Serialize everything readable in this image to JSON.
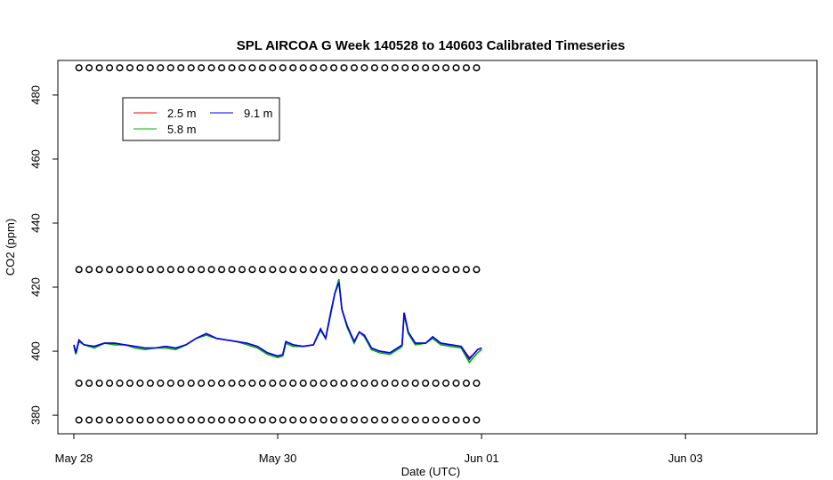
{
  "chart_data": {
    "type": "line",
    "title": "SPL AIRCOA G  Week 140528 to 140603  Calibrated Timeseries",
    "x_label": "Date (UTC)",
    "y_label": "CO2 (ppm)",
    "xlim": [
      -0.157,
      7.29
    ],
    "ylim": [
      374.2,
      490.8
    ],
    "xticks": [
      {
        "value": 0,
        "label": "May 28"
      },
      {
        "value": 2,
        "label": "May 30"
      },
      {
        "value": 4,
        "label": "Jun 01"
      },
      {
        "value": 6,
        "label": "Jun 03"
      }
    ],
    "yticks": [
      380,
      400,
      420,
      440,
      460,
      480
    ],
    "x": [
      0,
      0.02,
      0.05,
      0.1,
      0.2,
      0.3,
      0.4,
      0.5,
      0.6,
      0.7,
      0.8,
      0.9,
      1.0,
      1.1,
      1.2,
      1.3,
      1.4,
      1.5,
      1.6,
      1.7,
      1.8,
      1.9,
      2.0,
      2.05,
      2.08,
      2.15,
      2.25,
      2.35,
      2.42,
      2.47,
      2.52,
      2.56,
      2.6,
      2.63,
      2.68,
      2.75,
      2.8,
      2.85,
      2.92,
      3.0,
      3.1,
      3.2,
      3.22,
      3.24,
      3.28,
      3.35,
      3.45,
      3.52,
      3.6,
      3.7,
      3.8,
      3.88,
      3.92,
      3.96,
      4.0
    ],
    "series": [
      {
        "name": "2.5 m",
        "color": "#ff0000",
        "values": [
          402,
          399.5,
          403.5,
          402,
          401.5,
          402.5,
          402.5,
          402,
          401.5,
          401,
          401,
          401.5,
          401,
          402,
          404,
          405.5,
          404,
          403.5,
          403,
          402.5,
          401.5,
          399.5,
          398.5,
          399,
          403,
          402,
          401.5,
          402,
          407,
          404,
          412,
          418,
          422,
          413,
          408,
          403,
          406,
          405,
          401,
          400,
          399.5,
          401.5,
          402,
          412,
          406,
          402.5,
          402.5,
          404.5,
          402.5,
          402,
          401.5,
          398,
          399,
          400.5,
          401
        ]
      },
      {
        "name": "5.8 m",
        "color": "#00b000",
        "values": [
          401.5,
          399,
          403,
          402,
          401,
          402.5,
          402,
          402,
          401,
          400.5,
          401,
          401,
          400.5,
          402,
          404,
          405,
          404,
          403.5,
          403,
          402,
          401,
          399,
          398,
          398.5,
          402.5,
          401.5,
          401.5,
          402,
          406.5,
          404,
          411.5,
          418,
          422.5,
          413,
          407.5,
          402.5,
          406,
          404.5,
          400.5,
          399.5,
          399,
          401,
          401.5,
          411.5,
          405.5,
          402,
          402.5,
          404,
          402,
          401.5,
          401,
          396.5,
          398,
          399.5,
          400.5
        ]
      },
      {
        "name": "9.1 m",
        "color": "#0000ff",
        "values": [
          402,
          399.5,
          403.5,
          402,
          401.5,
          402.5,
          402.5,
          402,
          401.5,
          401,
          401,
          401.5,
          401,
          402,
          404,
          405.5,
          404,
          403.5,
          403,
          402.5,
          401.5,
          399.5,
          398.5,
          399,
          403,
          402,
          401.5,
          402,
          407,
          404,
          412,
          418,
          421.5,
          413,
          408,
          403,
          406,
          405,
          401,
          400,
          399.5,
          401.5,
          402,
          412,
          406,
          402.5,
          402.5,
          404.5,
          402.5,
          402,
          401.5,
          397.5,
          399,
          400.5,
          401
        ]
      }
    ],
    "calibration": {
      "x": [
        0.05,
        0.15,
        0.25,
        0.35,
        0.45,
        0.55,
        0.65,
        0.75,
        0.85,
        0.95,
        1.05,
        1.15,
        1.25,
        1.35,
        1.45,
        1.55,
        1.65,
        1.75,
        1.85,
        1.95,
        2.05,
        2.15,
        2.25,
        2.35,
        2.45,
        2.55,
        2.65,
        2.75,
        2.85,
        2.95,
        3.05,
        3.15,
        3.25,
        3.35,
        3.45,
        3.55,
        3.65,
        3.75,
        3.85,
        3.95
      ],
      "levels": [
        488.5,
        425.5,
        390,
        378.5
      ]
    },
    "legend": "top-left"
  }
}
